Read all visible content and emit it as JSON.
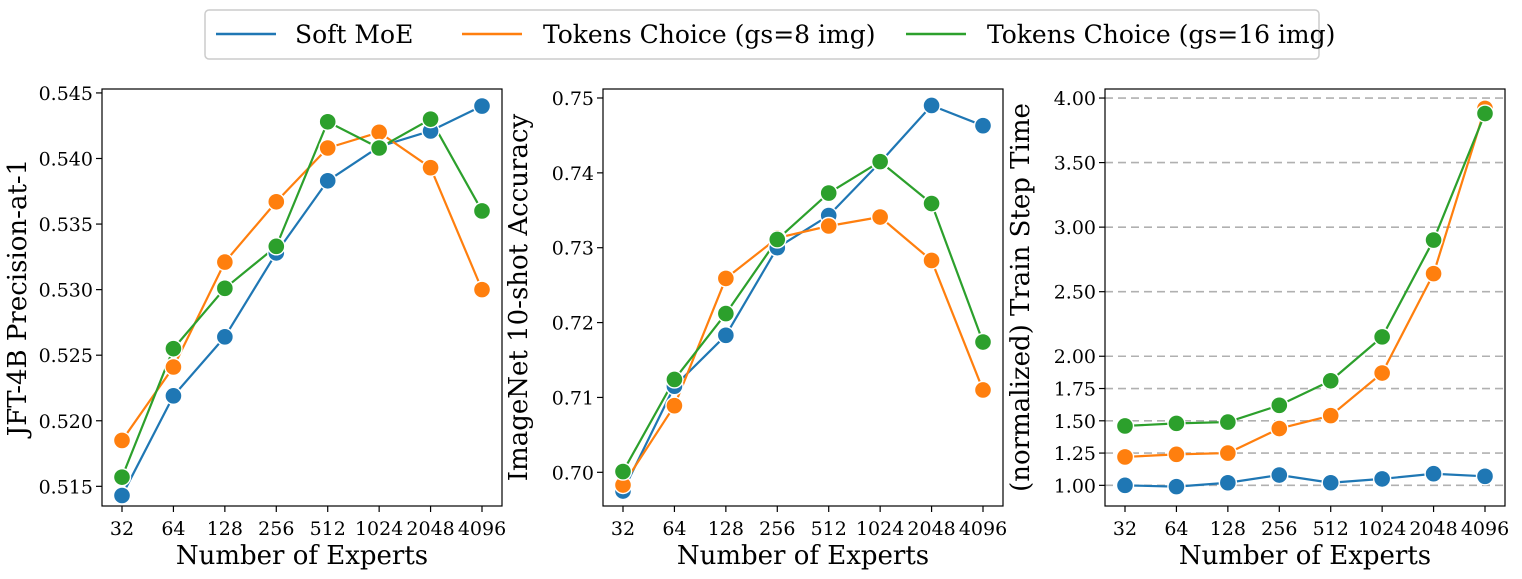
{
  "colors": {
    "soft_moe": "#1f77b4",
    "gs8": "#ff7f0e",
    "gs16": "#2ca02c",
    "grid": "#b0b0b0"
  },
  "legend": {
    "placement": "top-center",
    "entries": [
      "Soft MoE",
      "Tokens Choice (gs=8 img)",
      "Tokens Choice (gs=16 img)"
    ]
  },
  "chart_data": [
    {
      "type": "line",
      "xlabel": "Number of Experts",
      "ylabel": "JFT-4B Precision-at-1",
      "categories": [
        "32",
        "64",
        "128",
        "256",
        "512",
        "1024",
        "2048",
        "4096"
      ],
      "ylim": [
        0.5135,
        0.5453
      ],
      "yticks": [
        "0.515",
        "0.520",
        "0.525",
        "0.530",
        "0.535",
        "0.540",
        "0.545"
      ],
      "grid": false,
      "series": [
        {
          "name": "Soft MoE",
          "values": [
            0.5143,
            0.5219,
            0.5264,
            0.5328,
            0.5383,
            0.5409,
            0.5421,
            0.544
          ]
        },
        {
          "name": "Tokens Choice (gs=8 img)",
          "values": [
            0.5185,
            0.5241,
            0.5321,
            0.5367,
            0.5408,
            0.542,
            0.5393,
            0.53
          ]
        },
        {
          "name": "Tokens Choice (gs=16 img)",
          "values": [
            0.5157,
            0.5255,
            0.5301,
            0.5333,
            0.5428,
            0.5408,
            0.543,
            0.536
          ]
        }
      ]
    },
    {
      "type": "line",
      "xlabel": "Number of Experts",
      "ylabel": "ImageNet 10-shot Accuracy",
      "categories": [
        "32",
        "64",
        "128",
        "256",
        "512",
        "1024",
        "2048",
        "4096"
      ],
      "ylim": [
        0.6955,
        0.7512
      ],
      "yticks": [
        "0.70",
        "0.71",
        "0.72",
        "0.73",
        "0.74",
        "0.75"
      ],
      "grid": false,
      "series": [
        {
          "name": "Soft MoE",
          "values": [
            0.6975,
            0.7115,
            0.7183,
            0.73,
            0.7343,
            0.7414,
            0.749,
            0.7463
          ]
        },
        {
          "name": "Tokens Choice (gs=8 img)",
          "values": [
            0.6983,
            0.7089,
            0.7259,
            0.7313,
            0.7329,
            0.7341,
            0.7283,
            0.711
          ]
        },
        {
          "name": "Tokens Choice (gs=16 img)",
          "values": [
            0.7001,
            0.7124,
            0.7212,
            0.7311,
            0.7373,
            0.7415,
            0.7359,
            0.7174
          ]
        }
      ]
    },
    {
      "type": "line",
      "xlabel": "Number of Experts",
      "ylabel": "(normalized) Train Step Time",
      "categories": [
        "32",
        "64",
        "128",
        "256",
        "512",
        "1024",
        "2048",
        "4096"
      ],
      "ylim": [
        0.84,
        4.07
      ],
      "yticks": [
        "1.00",
        "1.25",
        "1.50",
        "1.75",
        "2.00",
        "2.50",
        "3.00",
        "3.50",
        "4.00"
      ],
      "grid": true,
      "series": [
        {
          "name": "Soft MoE",
          "values": [
            1.0,
            0.99,
            1.02,
            1.08,
            1.02,
            1.05,
            1.09,
            1.07
          ]
        },
        {
          "name": "Tokens Choice (gs=8 img)",
          "values": [
            1.22,
            1.24,
            1.25,
            1.44,
            1.54,
            1.87,
            2.64,
            3.92
          ]
        },
        {
          "name": "Tokens Choice (gs=16 img)",
          "values": [
            1.46,
            1.48,
            1.49,
            1.62,
            1.81,
            2.15,
            2.9,
            3.88
          ]
        }
      ]
    }
  ]
}
